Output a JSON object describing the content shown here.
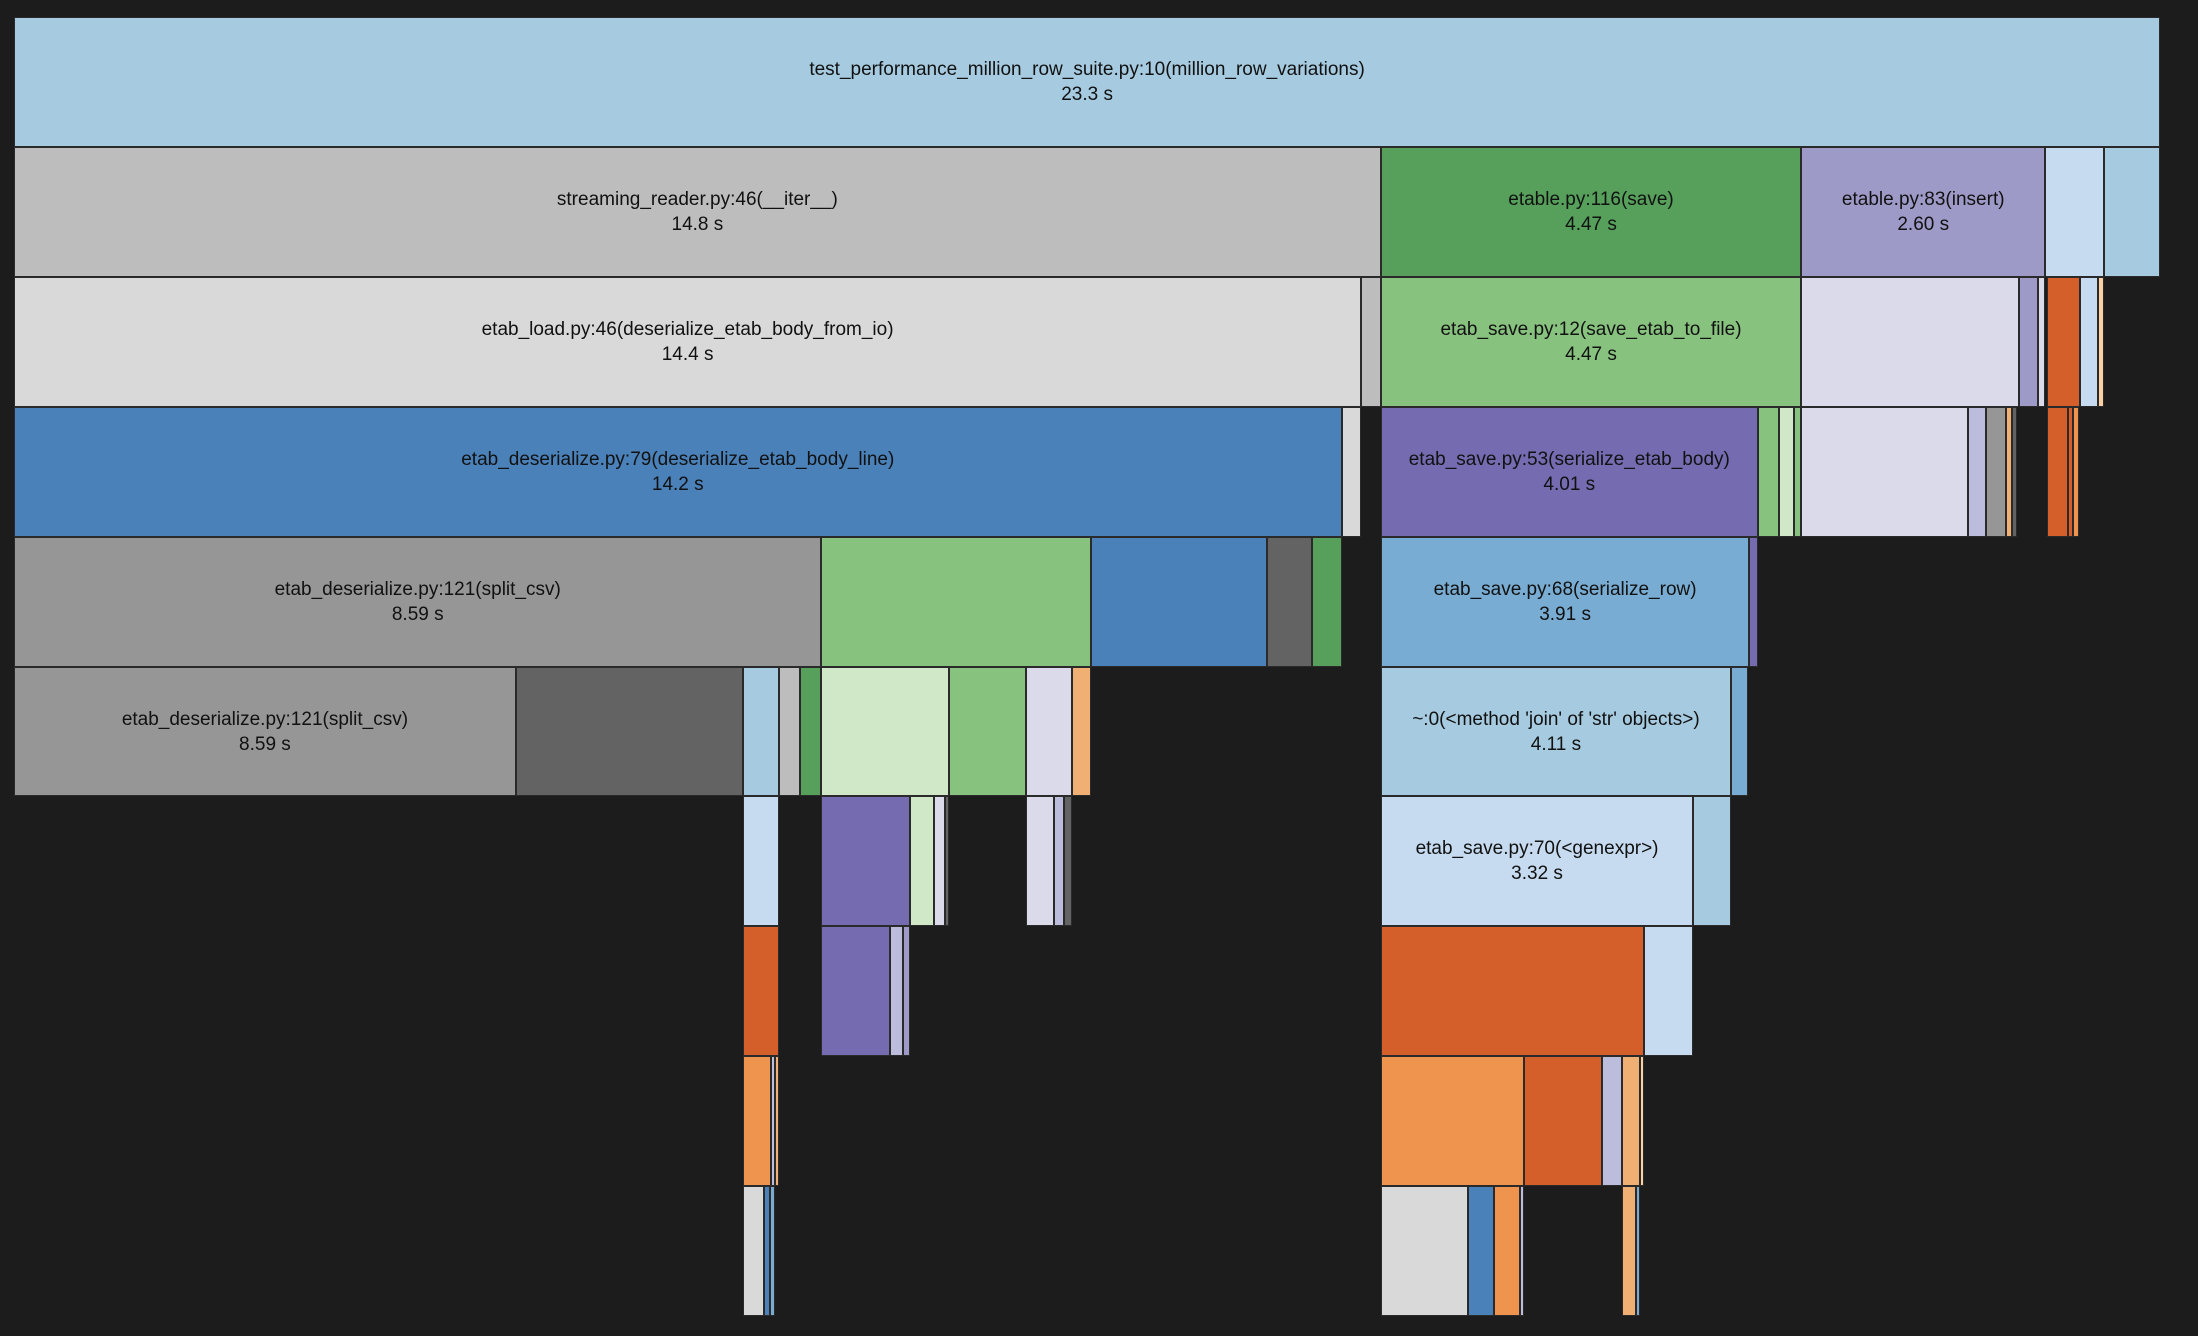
{
  "chart_data": {
    "type": "icicle",
    "value_unit": "s",
    "nodes": [
      {
        "name": "test_performance_million_row_suite.py:10(million_row_variations)",
        "time": "23.3 s",
        "depth": 0
      },
      {
        "name": "streaming_reader.py:46(__iter__)",
        "time": "14.8 s",
        "depth": 1
      },
      {
        "name": "etable.py:116(save)",
        "time": "4.47 s",
        "depth": 1
      },
      {
        "name": "etable.py:83(insert)",
        "time": "2.60 s",
        "depth": 1
      },
      {
        "name": "etab_load.py:46(deserialize_etab_body_from_io)",
        "time": "14.4 s",
        "depth": 2
      },
      {
        "name": "etab_save.py:12(save_etab_to_file)",
        "time": "4.47 s",
        "depth": 2
      },
      {
        "name": "etab_deserialize.py:79(deserialize_etab_body_line)",
        "time": "14.2 s",
        "depth": 3
      },
      {
        "name": "etab_save.py:53(serialize_etab_body)",
        "time": "4.01 s",
        "depth": 3
      },
      {
        "name": "etab_deserialize.py:121(split_csv)",
        "time": "8.59 s",
        "depth": 4
      },
      {
        "name": "etab_save.py:68(serialize_row)",
        "time": "3.91 s",
        "depth": 4
      },
      {
        "name": "etab_deserialize.py:121(split_csv)",
        "time": "8.59 s",
        "depth": 5
      },
      {
        "name": "~:0(<method 'join' of 'str' objects>)",
        "time": "4.11 s",
        "depth": 5
      },
      {
        "name": "etab_save.py:70(<genexpr>)",
        "time": "3.32 s",
        "depth": 6
      }
    ]
  },
  "colors": {
    "background": "#1c1c1c",
    "lightblue": "#a6cbe0",
    "gray": "#bdbdbd",
    "lightgray": "#d9d9d9",
    "blue": "#4a81b9",
    "midgray": "#969696",
    "darkgray": "#636363",
    "green": "#56a05b",
    "lightgreen": "#88c27f",
    "palegreen": "#d0e8c7",
    "purple": "#756bb1",
    "lavender": "#9e9ac8",
    "palelavender": "#dadaeb",
    "lavender2": "#bcbddc",
    "orange": "#d45f2a",
    "lightorange": "#ee944f",
    "peach": "#f0b074",
    "palepeach": "#fdd0a2",
    "paleblue": "#c6dbef",
    "midblue": "#79acd2"
  }
}
